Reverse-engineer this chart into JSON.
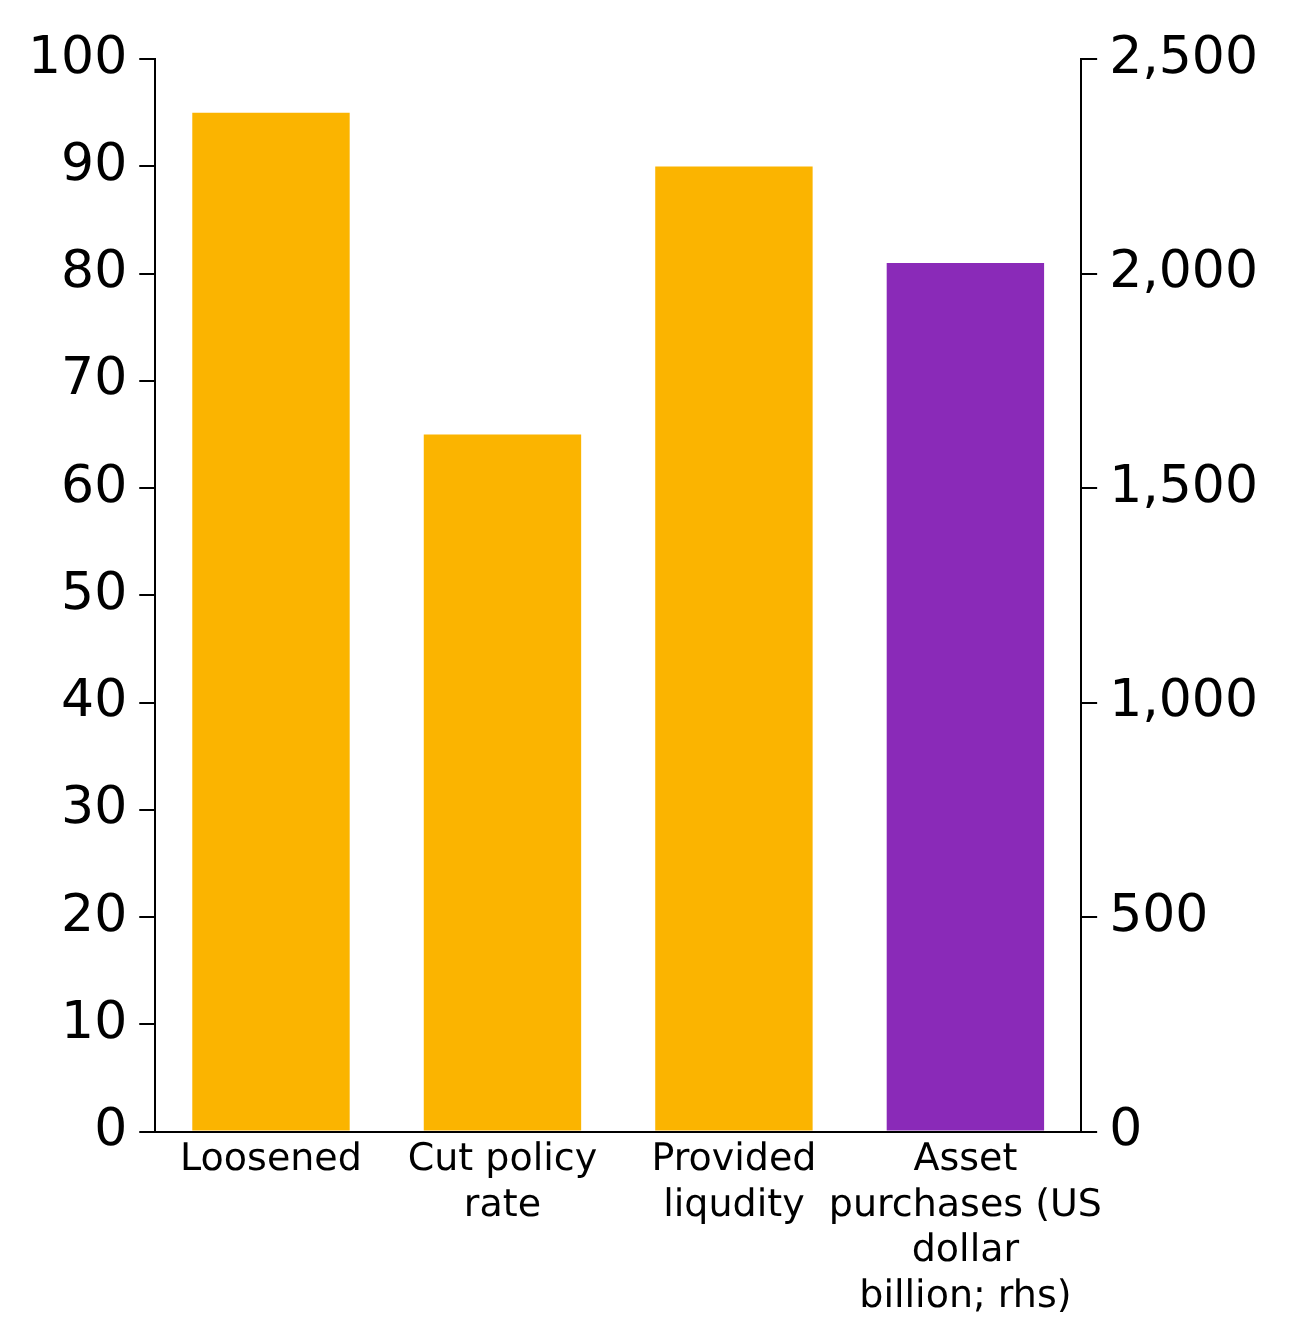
{
  "chart_data": {
    "type": "bar",
    "categories": [
      "Loosened",
      "Cut policy rate",
      "Provided liqudity",
      "Asset purchases (US dollar billion; rhs)"
    ],
    "series": [
      {
        "color": "#fbb400",
        "values": [
          95,
          65,
          90,
          null
        ]
      },
      {
        "color": "#8a2ab8",
        "axis": "y2",
        "values": [
          null,
          null,
          null,
          2025
        ]
      }
    ],
    "ylim": [
      0,
      100
    ],
    "yticks": [
      0,
      10,
      20,
      30,
      40,
      50,
      60,
      70,
      80,
      90,
      100
    ],
    "y2lim": [
      0,
      2500
    ],
    "y2ticks": [
      0,
      {
        "value": 500,
        "label": "500"
      },
      {
        "value": 1000,
        "label": "1,000"
      },
      {
        "value": 1500,
        "label": "1,500"
      },
      {
        "value": 2000,
        "label": "2,000"
      },
      {
        "value": 2500,
        "label": "2,500"
      }
    ],
    "grid": false,
    "legend": false
  }
}
